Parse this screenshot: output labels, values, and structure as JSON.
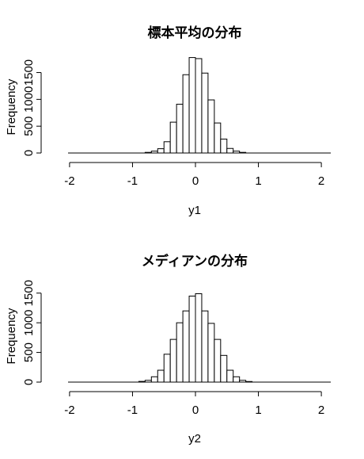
{
  "chart_data": [
    {
      "type": "bar",
      "subtype": "histogram",
      "title": "標本平均の分布",
      "xlabel": "y1",
      "ylabel": "Frequency",
      "xlim": [
        -2.2,
        2.2
      ],
      "ylim": [
        0,
        1700
      ],
      "xticks": [
        -2,
        -1,
        0,
        1,
        2
      ],
      "xtick_labels": [
        "-2",
        "-1",
        "0",
        "1",
        "2"
      ],
      "yticks": [
        0,
        500,
        1000,
        1500
      ],
      "ytick_labels": [
        "0",
        "500",
        "1000",
        "1500"
      ],
      "grid": false,
      "legend": "none",
      "bin_width": 0.1,
      "bins": [
        {
          "x0": -0.8,
          "x1": -0.7,
          "count": 12
        },
        {
          "x0": -0.7,
          "x1": -0.6,
          "count": 35
        },
        {
          "x0": -0.6,
          "x1": -0.5,
          "count": 80
        },
        {
          "x0": -0.5,
          "x1": -0.4,
          "count": 210
        },
        {
          "x0": -0.4,
          "x1": -0.3,
          "count": 575
        },
        {
          "x0": -0.3,
          "x1": -0.2,
          "count": 910
        },
        {
          "x0": -0.2,
          "x1": -0.1,
          "count": 1460
        },
        {
          "x0": -0.1,
          "x1": 0.0,
          "count": 1780
        },
        {
          "x0": 0.0,
          "x1": 0.1,
          "count": 1760
        },
        {
          "x0": 0.1,
          "x1": 0.2,
          "count": 1490
        },
        {
          "x0": 0.2,
          "x1": 0.3,
          "count": 990
        },
        {
          "x0": 0.3,
          "x1": 0.4,
          "count": 560
        },
        {
          "x0": 0.4,
          "x1": 0.5,
          "count": 260
        },
        {
          "x0": 0.5,
          "x1": 0.6,
          "count": 85
        },
        {
          "x0": 0.6,
          "x1": 0.7,
          "count": 35
        },
        {
          "x0": 0.7,
          "x1": 0.8,
          "count": 12
        }
      ]
    },
    {
      "type": "bar",
      "subtype": "histogram",
      "title": "メディアンの分布",
      "xlabel": "y2",
      "ylabel": "Frequency",
      "xlim": [
        -2.2,
        2.2
      ],
      "ylim": [
        0,
        1550
      ],
      "xticks": [
        -2,
        -1,
        0,
        1,
        2
      ],
      "xtick_labels": [
        "-2",
        "-1",
        "0",
        "1",
        "2"
      ],
      "yticks": [
        0,
        500,
        1000,
        1500
      ],
      "ytick_labels": [
        "0",
        "500",
        "1000",
        "1500"
      ],
      "grid": false,
      "legend": "none",
      "bin_width": 0.1,
      "bins": [
        {
          "x0": -0.9,
          "x1": -0.8,
          "count": 12
        },
        {
          "x0": -0.8,
          "x1": -0.7,
          "count": 30
        },
        {
          "x0": -0.7,
          "x1": -0.6,
          "count": 90
        },
        {
          "x0": -0.6,
          "x1": -0.5,
          "count": 200
        },
        {
          "x0": -0.5,
          "x1": -0.4,
          "count": 470
        },
        {
          "x0": -0.4,
          "x1": -0.3,
          "count": 720
        },
        {
          "x0": -0.3,
          "x1": -0.2,
          "count": 1000
        },
        {
          "x0": -0.2,
          "x1": -0.1,
          "count": 1200
        },
        {
          "x0": -0.1,
          "x1": 0.0,
          "count": 1450
        },
        {
          "x0": 0.0,
          "x1": 0.1,
          "count": 1490
        },
        {
          "x0": 0.1,
          "x1": 0.2,
          "count": 1200
        },
        {
          "x0": 0.2,
          "x1": 0.3,
          "count": 990
        },
        {
          "x0": 0.3,
          "x1": 0.4,
          "count": 720
        },
        {
          "x0": 0.4,
          "x1": 0.5,
          "count": 450
        },
        {
          "x0": 0.5,
          "x1": 0.6,
          "count": 200
        },
        {
          "x0": 0.6,
          "x1": 0.7,
          "count": 90
        },
        {
          "x0": 0.7,
          "x1": 0.8,
          "count": 30
        },
        {
          "x0": 0.8,
          "x1": 0.9,
          "count": 10
        }
      ]
    }
  ]
}
